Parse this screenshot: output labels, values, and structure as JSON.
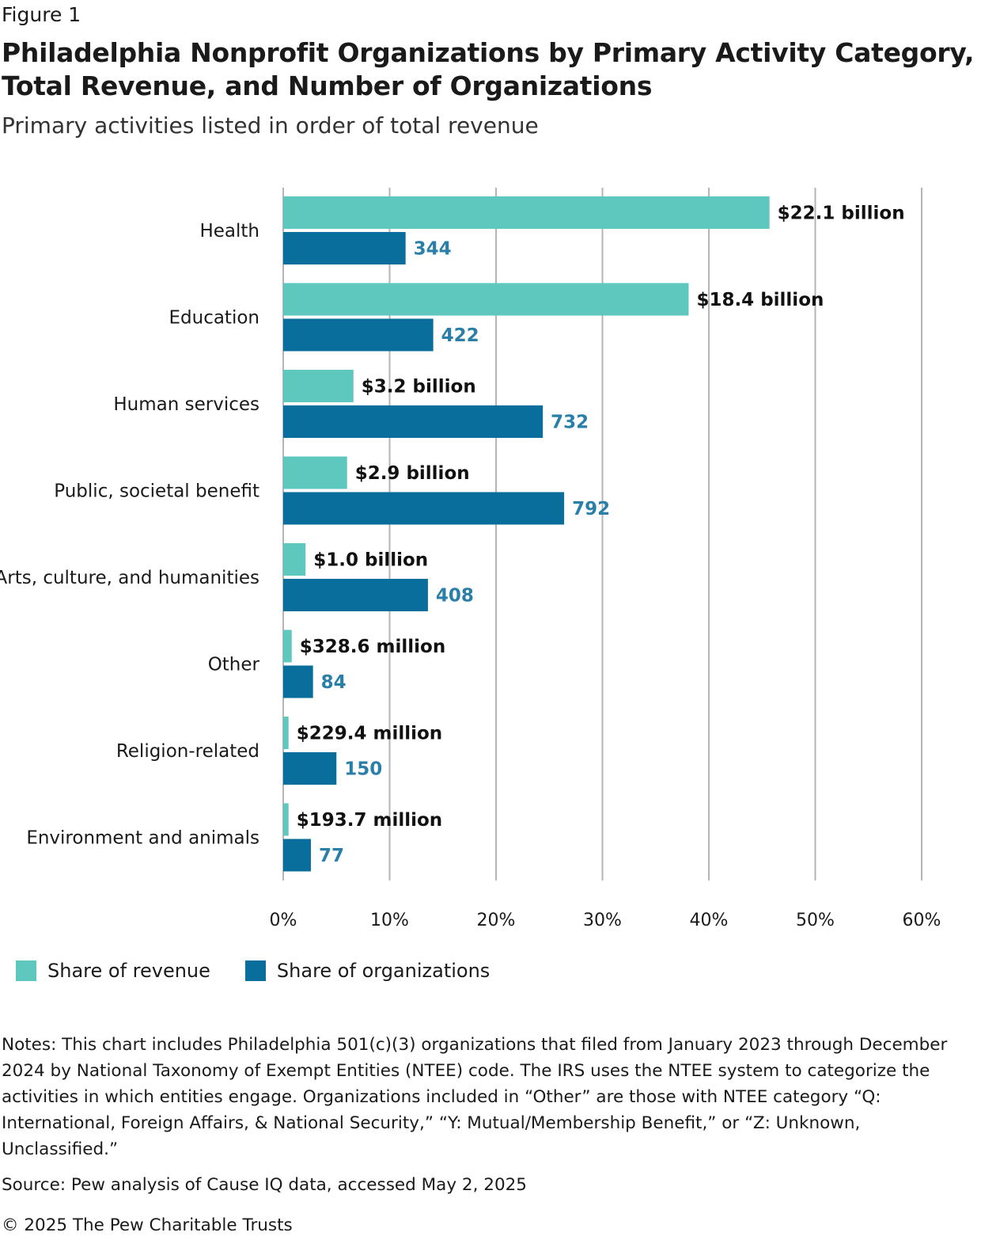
{
  "figure_label": "Figure 1",
  "title": "Philadelphia Nonprofit Organizations by Primary Activity Category, Total Revenue, and Number of Organizations",
  "subtitle": "Primary activities listed in order of total revenue",
  "colors": {
    "revenue": "#5ec8bf",
    "organizations": "#0a6e9c",
    "org_label": "#2a7fa8",
    "grid": "#b5b5b5"
  },
  "chart_data": {
    "type": "bar",
    "orientation": "horizontal",
    "categories": [
      "Health",
      "Education",
      "Human services",
      "Public, societal benefit",
      "Arts, culture, and humanities",
      "Other",
      "Religion-related",
      "Environment and animals"
    ],
    "series": [
      {
        "name": "Share of revenue",
        "values": [
          45.7,
          38.1,
          6.6,
          6.0,
          2.1,
          0.8,
          0.5,
          0.5
        ],
        "labels": [
          "$22.1 billion",
          "$18.4 billion",
          "$3.2 billion",
          "$2.9 billion",
          "$1.0 billion",
          "$328.6 million",
          "$229.4 million",
          "$193.7 million"
        ]
      },
      {
        "name": "Share of organizations",
        "values": [
          11.5,
          14.1,
          24.4,
          26.4,
          13.6,
          2.8,
          5.0,
          2.6
        ],
        "labels": [
          "344",
          "422",
          "732",
          "792",
          "408",
          "84",
          "150",
          "77"
        ]
      }
    ],
    "x_ticks": [
      "0%",
      "10%",
      "20%",
      "30%",
      "40%",
      "50%",
      "60%"
    ],
    "xlim": [
      0,
      60
    ],
    "grid": true,
    "legend_position": "bottom-left"
  },
  "legend": {
    "revenue": "Share of revenue",
    "organizations": "Share of organizations"
  },
  "notes": "Notes: This chart includes Philadelphia 501(c)(3) organizations that filed from January 2023 through December 2024 by National Taxonomy of Exempt Entities (NTEE) code. The IRS uses the NTEE system to categorize the activities in which entities engage. Organizations included in “Other” are those with NTEE category “Q: International, Foreign Affairs, & National Security,” “Y: Mutual/Membership Benefit,” or “Z: Unknown, Unclassified.”",
  "source": "Source: Pew analysis of Cause IQ data, accessed May 2, 2025",
  "copyright": "© 2025 The Pew Charitable Trusts"
}
